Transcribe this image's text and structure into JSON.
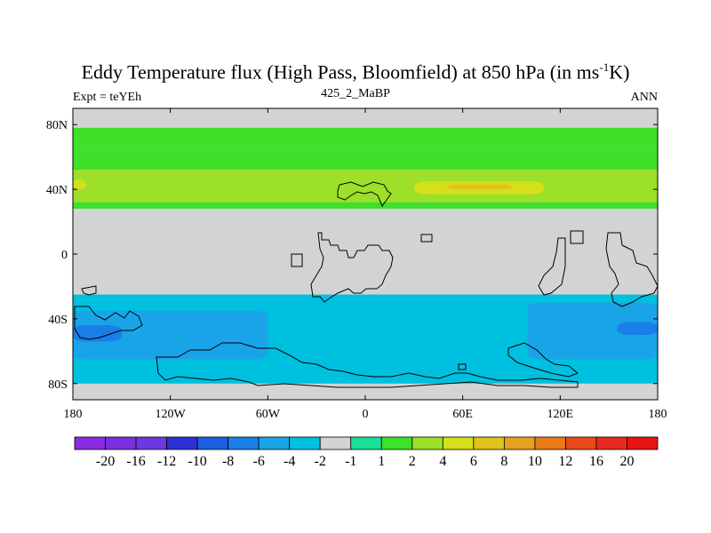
{
  "title": {
    "main": "Eddy Temperature flux (High Pass, Bloomfield) at 850 hPa (in ms",
    "sup": "-1",
    "end": "K)"
  },
  "subtitle": {
    "left": "Expt = teYEh",
    "center": "425_2_MaBP",
    "right": "ANN"
  },
  "colors": {
    "background": "#d3d3d3",
    "levels": [
      {
        "label": "-20",
        "color": "#8a2be2"
      },
      {
        "label": "-16",
        "color": "#7a30e0"
      },
      {
        "label": "-12",
        "color": "#6a3ae0"
      },
      {
        "label": "-10",
        "color": "#2f2fd6"
      },
      {
        "label": "-8",
        "color": "#1c5fe0"
      },
      {
        "label": "-6",
        "color": "#1a7ee8"
      },
      {
        "label": "-4",
        "color": "#1aa4e8"
      },
      {
        "label": "-2",
        "color": "#00c0e0"
      },
      {
        "label": "-1",
        "color": "#d3d3d3"
      },
      {
        "label": "1",
        "color": "#1ae098"
      },
      {
        "label": "2",
        "color": "#3ee02a"
      },
      {
        "label": "4",
        "color": "#9ce02a"
      },
      {
        "label": "6",
        "color": "#d4e01a"
      },
      {
        "label": "8",
        "color": "#e0c21a"
      },
      {
        "label": "10",
        "color": "#e8a020"
      },
      {
        "label": "12",
        "color": "#e87a18"
      },
      {
        "label": "16",
        "color": "#e84a18"
      },
      {
        "label": "20",
        "color": "#e82a20"
      },
      {
        "label": "",
        "color": "#e81414"
      }
    ]
  },
  "chart_data": {
    "type": "heatmap",
    "title": "Eddy Temperature flux (High Pass, Bloomfield) at 850 hPa (in ms-1K)",
    "xlim": [
      -180,
      180
    ],
    "ylim": [
      -90,
      90
    ],
    "x_ticks": [
      {
        "value": -180,
        "label": "180"
      },
      {
        "value": -120,
        "label": "120W"
      },
      {
        "value": -60,
        "label": "60W"
      },
      {
        "value": 0,
        "label": "0"
      },
      {
        "value": 60,
        "label": "60E"
      },
      {
        "value": 120,
        "label": "120E"
      },
      {
        "value": 180,
        "label": "180"
      }
    ],
    "y_ticks": [
      {
        "value": 80,
        "label": "80N"
      },
      {
        "value": 40,
        "label": "40N"
      },
      {
        "value": 0,
        "label": "0"
      },
      {
        "value": -40,
        "label": "40S"
      },
      {
        "value": -80,
        "label": "80S"
      }
    ],
    "colorbar_labels": [
      "-20",
      "-16",
      "-12",
      "-10",
      "-8",
      "-6",
      "-4",
      "-2",
      "-1",
      "1",
      "2",
      "4",
      "6",
      "8",
      "10",
      "12",
      "16",
      "20"
    ],
    "bands": [
      {
        "lat_top": 78,
        "lat_bottom": 66,
        "value": 1
      },
      {
        "lat_top": 66,
        "lat_bottom": 52,
        "value": 1.5
      },
      {
        "lat_top": 52,
        "lat_bottom": 32,
        "value": 3
      },
      {
        "lat_top": 45,
        "lat_bottom": 37,
        "value": 5,
        "lon_start": 30,
        "lon_end": 110
      },
      {
        "lat_top": 43,
        "lat_bottom": 40,
        "value": 6.5,
        "lon_start": 50,
        "lon_end": 90
      },
      {
        "lat_top": 46,
        "lat_bottom": 40,
        "value": 5,
        "lon_start": -180,
        "lon_end": -172
      },
      {
        "lat_top": 32,
        "lat_bottom": 28,
        "value": 1.5
      },
      {
        "lat_top": -25,
        "lat_bottom": -80,
        "value": -2.5
      },
      {
        "lat_top": -35,
        "lat_bottom": -65,
        "value": -5,
        "lon_start": -180,
        "lon_end": -60
      },
      {
        "lat_top": -44,
        "lat_bottom": -54,
        "value": -7,
        "lon_start": -180,
        "lon_end": -150
      },
      {
        "lat_top": -30,
        "lat_bottom": -65,
        "value": -5,
        "lon_start": 100,
        "lon_end": 180
      },
      {
        "lat_top": -42,
        "lat_bottom": -50,
        "value": -7,
        "lon_start": 155,
        "lon_end": 180
      }
    ]
  }
}
